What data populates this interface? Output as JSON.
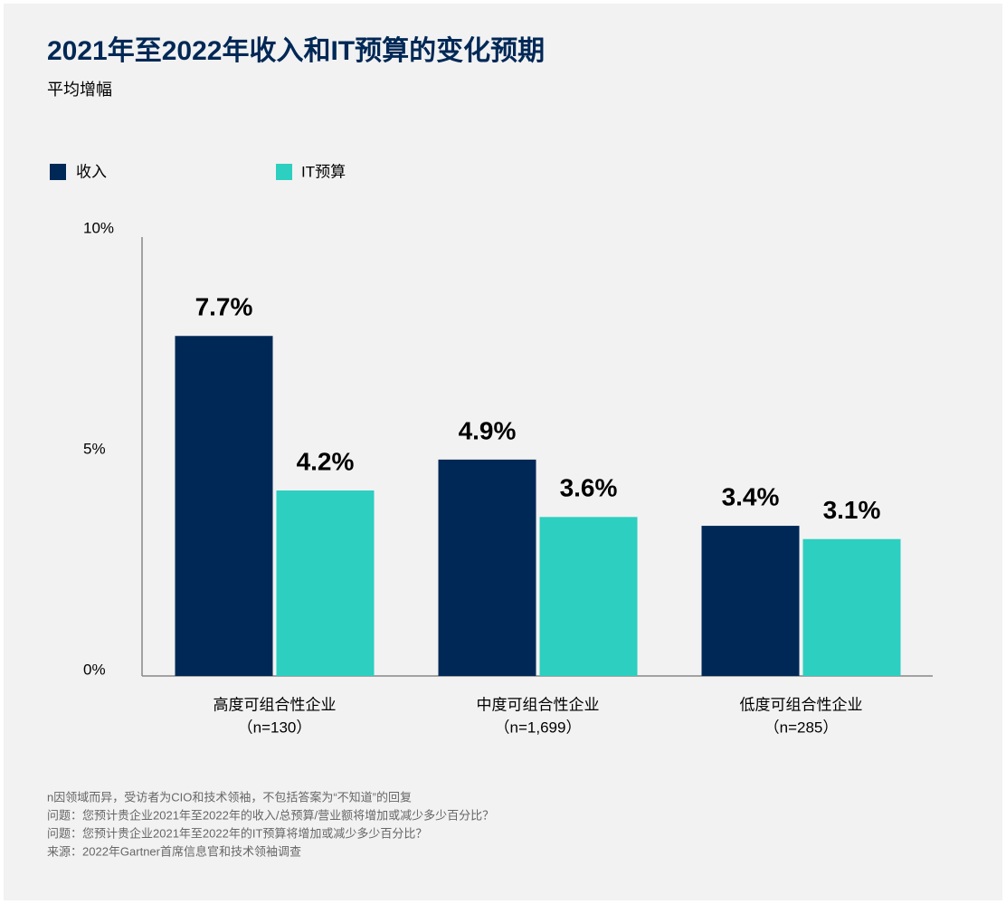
{
  "chart_data": {
    "type": "bar",
    "title": "2021年至2022年收入和IT预算的变化预期",
    "subtitle": "平均增幅",
    "categories": [
      "高度可组合性企业",
      "中度可组合性企业",
      "低度可组合性企业"
    ],
    "category_notes": [
      "（n=130）",
      "（n=1,699）",
      "（n=285）"
    ],
    "series": [
      {
        "name": "收入",
        "color": "#002856",
        "values": [
          7.7,
          4.9,
          3.4
        ],
        "value_labels": [
          "7.7%",
          "4.9%",
          "3.4%"
        ]
      },
      {
        "name": "IT预算",
        "color": "#2ccfc0",
        "values": [
          4.2,
          3.6,
          3.1
        ],
        "value_labels": [
          "4.2%",
          "3.6%",
          "3.1%"
        ]
      }
    ],
    "ylim": [
      0,
      10
    ],
    "yticks": [
      {
        "value": 0,
        "label": "0%"
      },
      {
        "value": 5,
        "label": "5%"
      },
      {
        "value": 10,
        "label": "10%"
      }
    ],
    "grid": false,
    "legend": "top-left",
    "footnotes": [
      "n因领域而异，受访者为CIO和技术领袖，不包括答案为“不知道”的回复",
      "问题：您预计贵企业2021年至2022年的收入/总预算/营业额将增加或减少多少百分比？",
      "问题：您预计贵企业2021年至2022年的IT预算将增加或减少多少百分比？",
      "来源：2022年Gartner首席信息官和技术领袖调查"
    ]
  }
}
